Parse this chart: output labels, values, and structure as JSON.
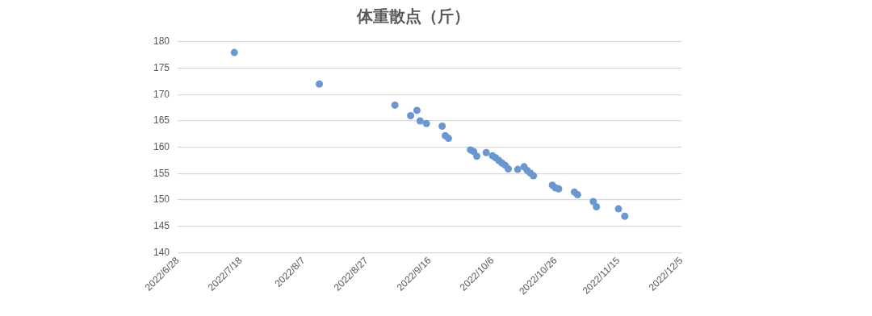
{
  "chart_data": {
    "type": "scatter",
    "title": "体重散点（斤）",
    "x": [
      "2022-07-16",
      "2022-08-12",
      "2022-09-05",
      "2022-09-10",
      "2022-09-12",
      "2022-09-13",
      "2022-09-15",
      "2022-09-20",
      "2022-09-21",
      "2022-09-22",
      "2022-09-29",
      "2022-09-30",
      "2022-10-01",
      "2022-10-04",
      "2022-10-06",
      "2022-10-07",
      "2022-10-08",
      "2022-10-09",
      "2022-10-10",
      "2022-10-11",
      "2022-10-14",
      "2022-10-16",
      "2022-10-17",
      "2022-10-18",
      "2022-10-19",
      "2022-10-25",
      "2022-10-26",
      "2022-10-27",
      "2022-11-01",
      "2022-11-02",
      "2022-11-07",
      "2022-11-08",
      "2022-11-15",
      "2022-11-17"
    ],
    "series": [
      {
        "color": "#6a97cf",
        "values": [
          178,
          172,
          168,
          166,
          167,
          165,
          164.5,
          164,
          162.2,
          161.7,
          159.5,
          159.2,
          158.3,
          159,
          158.4,
          158,
          157.5,
          157,
          156.6,
          155.9,
          155.8,
          156.3,
          155.6,
          155.1,
          154.6,
          152.8,
          152.3,
          152.1,
          151.5,
          151,
          149.7,
          148.7,
          148.3,
          146.9
        ]
      }
    ],
    "xlim": [
      "2022-06-28",
      "2022-12-05"
    ],
    "xticks": [
      {
        "value": "2022-06-28",
        "label": "2022/6/28"
      },
      {
        "value": "2022-07-18",
        "label": "2022/7/18"
      },
      {
        "value": "2022-08-07",
        "label": "2022/8/7"
      },
      {
        "value": "2022-08-27",
        "label": "2022/8/27"
      },
      {
        "value": "2022-09-16",
        "label": "2022/9/16"
      },
      {
        "value": "2022-10-06",
        "label": "2022/10/6"
      },
      {
        "value": "2022-10-26",
        "label": "2022/10/26"
      },
      {
        "value": "2022-11-15",
        "label": "2022/11/15"
      },
      {
        "value": "2022-12-05",
        "label": "2022/12/5"
      }
    ],
    "ylim": [
      140,
      180
    ],
    "yticks": [
      140,
      145,
      150,
      155,
      160,
      165,
      170,
      175,
      180
    ],
    "grid": "y",
    "legend": false,
    "marker": "circle"
  }
}
